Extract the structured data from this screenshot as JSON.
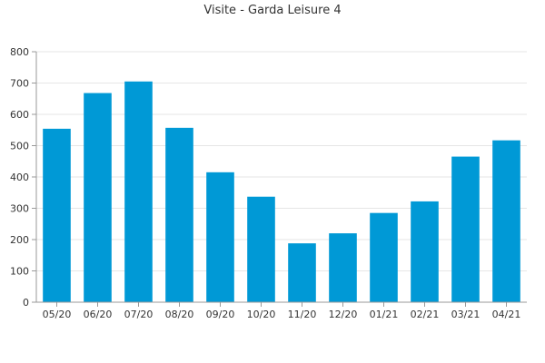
{
  "chart_data": {
    "type": "bar",
    "title": "Visite - Garda Leisure 4",
    "xlabel": "",
    "ylabel": "",
    "categories": [
      "05/20",
      "06/20",
      "07/20",
      "08/20",
      "09/20",
      "10/20",
      "11/20",
      "12/20",
      "01/21",
      "02/21",
      "03/21",
      "04/21"
    ],
    "values": [
      554,
      668,
      705,
      557,
      415,
      337,
      188,
      220,
      285,
      322,
      465,
      517
    ],
    "ylim": [
      0,
      800
    ],
    "yticks": [
      "0",
      "100",
      "200",
      "300",
      "400",
      "500",
      "600",
      "700",
      "800"
    ],
    "grid": true,
    "legend": "none",
    "colors": {
      "bar": "#0099d6",
      "grid": "#e6e6e6",
      "axis": "#999999",
      "text": "#333333"
    }
  }
}
